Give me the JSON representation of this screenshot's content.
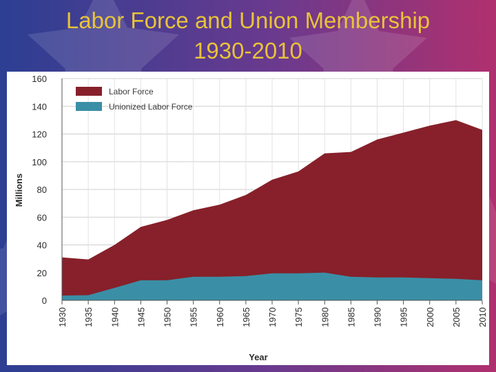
{
  "slide": {
    "title_line1": "Labor Force and Union Membership",
    "title_line2": "1930-2010"
  },
  "colors": {
    "background_left": "#2c3f93",
    "background_right": "#b0306e",
    "title": "#e8c33a",
    "labor_force": "#87202a",
    "unionized": "#3a8fa6"
  },
  "chart_data": {
    "type": "area",
    "title": "",
    "xlabel": "Year",
    "ylabel": "Millions",
    "x": [
      1930,
      1935,
      1940,
      1945,
      1950,
      1955,
      1960,
      1965,
      1970,
      1975,
      1980,
      1985,
      1990,
      1995,
      2000,
      2005,
      2010
    ],
    "ylim": [
      0,
      160
    ],
    "yticks": [
      0,
      20,
      40,
      60,
      80,
      100,
      120,
      140,
      160
    ],
    "grid": true,
    "legend_position": "top-left",
    "series": [
      {
        "name": "Labor Force",
        "color": "#87202a",
        "values": [
          31,
          29.5,
          40,
          53,
          58,
          65,
          69,
          76,
          87,
          93,
          106,
          107,
          116,
          121,
          126,
          130,
          123
        ]
      },
      {
        "name": "Unionized Labor Force",
        "color": "#3a8fa6",
        "values": [
          3.5,
          3.7,
          9,
          14.5,
          14.5,
          17,
          17,
          17.5,
          19.5,
          19.5,
          20,
          17,
          16.5,
          16.5,
          16,
          15.5,
          14.5
        ]
      }
    ]
  }
}
